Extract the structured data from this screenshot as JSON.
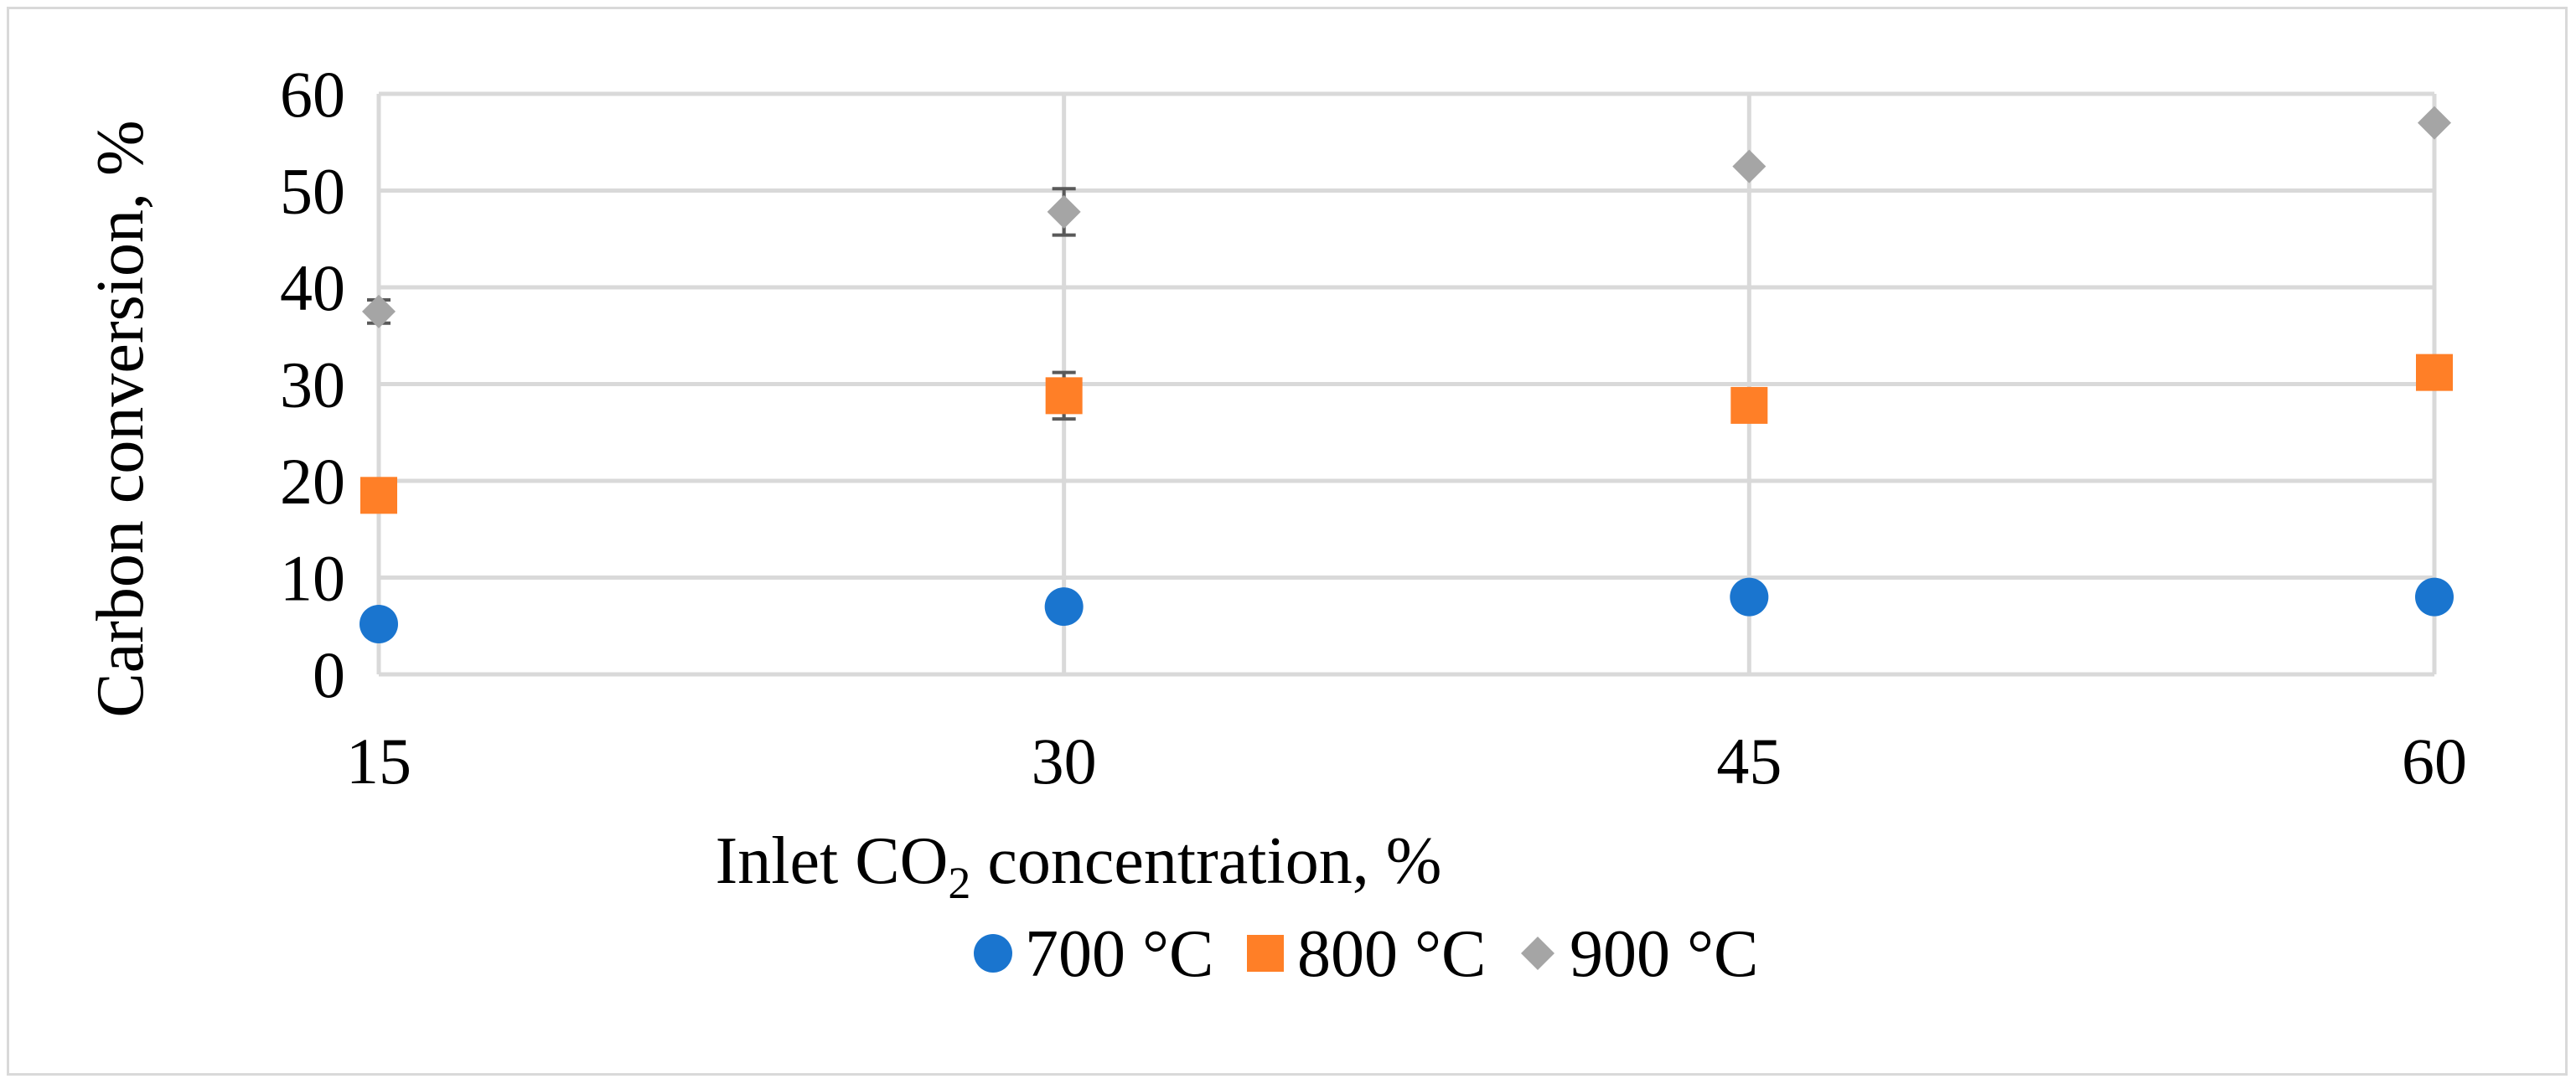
{
  "chart_data": {
    "type": "scatter",
    "title": "",
    "xlabel_main": "Inlet CO",
    "xlabel_sub": "2",
    "xlabel_rest": " concentration, %",
    "ylabel": "Carbon conversion, %",
    "x_ticks": [
      "15",
      "30",
      "45",
      "60"
    ],
    "y_ticks": [
      "0",
      "10",
      "20",
      "30",
      "40",
      "50",
      "60"
    ],
    "xlim": [
      15,
      60
    ],
    "ylim": [
      0,
      60
    ],
    "grid": true,
    "legend_position": "bottom",
    "series": [
      {
        "name": "700 °C",
        "marker": "circle",
        "color": "#1a75cf",
        "x": [
          15,
          30,
          45,
          60
        ],
        "y": [
          5.2,
          7.0,
          8.0,
          8.0
        ]
      },
      {
        "name": "800 °C",
        "marker": "square",
        "color": "#ff7f27",
        "x": [
          15,
          30,
          45,
          60
        ],
        "y": [
          18.5,
          28.8,
          27.8,
          31.2
        ],
        "error": [
          0,
          2.4,
          0,
          0
        ]
      },
      {
        "name": "900 °C",
        "marker": "diamond",
        "color": "#a5a5a5",
        "x": [
          15,
          30,
          45,
          60
        ],
        "y": [
          37.5,
          47.8,
          52.5,
          57.0
        ],
        "error": [
          1.2,
          2.4,
          0,
          0
        ]
      }
    ],
    "error_bar_color": "#595959"
  }
}
